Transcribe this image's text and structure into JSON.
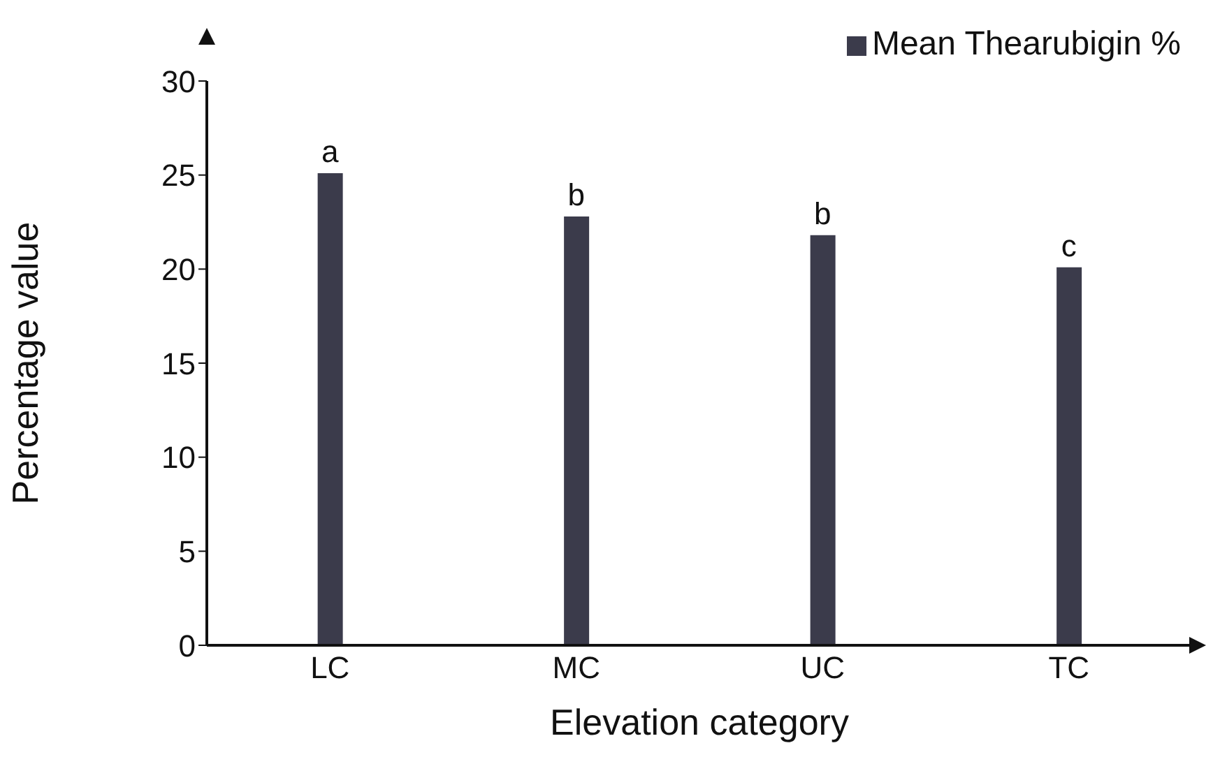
{
  "chart_data": {
    "type": "bar",
    "xlabel": "Elevation category",
    "ylabel": "Percentage  value",
    "categories": [
      "LC",
      "MC",
      "UC",
      "TC"
    ],
    "series": [
      {
        "name": "Mean Thearubigin %",
        "color": "#3b3b4b",
        "values": [
          25.1,
          22.8,
          21.8,
          20.1
        ]
      }
    ],
    "ylim": [
      0,
      30
    ],
    "yticks": [
      0,
      5,
      10,
      15,
      20,
      25,
      30
    ],
    "grid": false,
    "legend": "top right",
    "annotations": [
      {
        "text": "a",
        "x": "LC",
        "y": 25.1
      },
      {
        "text": "b",
        "x": "MC",
        "y": 22.8
      },
      {
        "text": "b",
        "x": "UC",
        "y": 21.8
      },
      {
        "text": "c",
        "x": "TC",
        "y": 20.1
      }
    ]
  }
}
